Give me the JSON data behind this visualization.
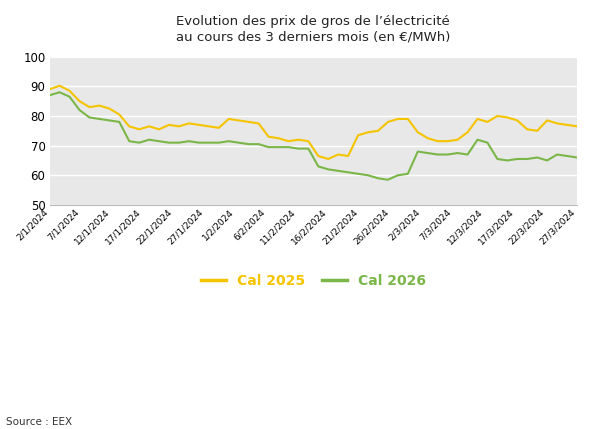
{
  "title": "Evolution des prix de gros de l’électricité\nau cours des 3 derniers mois (en €/MWh)",
  "source": "Source : EEX",
  "legend": [
    "Cal 2025",
    "Cal 2026"
  ],
  "colors": [
    "#f5c400",
    "#7ab648"
  ],
  "ylim": [
    50,
    100
  ],
  "yticks": [
    50,
    60,
    70,
    80,
    90,
    100
  ],
  "background_color": "#e8e8e8",
  "x_labels": [
    "2/1/2024",
    "7/1/2024",
    "12/1/2024",
    "17/1/2024",
    "22/1/2024",
    "27/1/2024",
    "1/2/2024",
    "6/2/2024",
    "11/2/2024",
    "16/2/2024",
    "21/2/2024",
    "26/2/2024",
    "2/3/2024",
    "7/3/2024",
    "12/3/2024",
    "17/3/2024",
    "22/3/2024",
    "27/3/2024"
  ],
  "cal2025": [
    89.0,
    90.2,
    88.5,
    85.0,
    83.0,
    83.5,
    82.5,
    80.5,
    76.5,
    75.5,
    76.5,
    75.5,
    77.0,
    76.5,
    77.5,
    77.0,
    76.5,
    76.0,
    79.0,
    78.5,
    78.0,
    77.5,
    73.0,
    72.5,
    71.5,
    72.0,
    71.5,
    66.5,
    65.5,
    67.0,
    66.5,
    73.5,
    74.5,
    75.0,
    78.0,
    79.0,
    79.0,
    74.5,
    72.5,
    71.5,
    71.5,
    72.0,
    74.5,
    79.0,
    78.0,
    80.0,
    79.5,
    78.5,
    75.5,
    75.0,
    78.5,
    77.5,
    77.0,
    76.5
  ],
  "cal2026": [
    87.0,
    88.0,
    86.5,
    82.0,
    79.5,
    79.0,
    78.5,
    78.0,
    71.5,
    71.0,
    72.0,
    71.5,
    71.0,
    71.0,
    71.5,
    71.0,
    71.0,
    71.0,
    71.5,
    71.0,
    70.5,
    70.5,
    69.5,
    69.5,
    69.5,
    69.0,
    69.0,
    63.0,
    62.0,
    61.5,
    61.0,
    60.5,
    60.0,
    59.0,
    58.5,
    60.0,
    60.5,
    68.0,
    67.5,
    67.0,
    67.0,
    67.5,
    67.0,
    72.0,
    71.0,
    65.5,
    65.0,
    65.5,
    65.5,
    66.0,
    65.0,
    67.0,
    66.5,
    66.0
  ]
}
